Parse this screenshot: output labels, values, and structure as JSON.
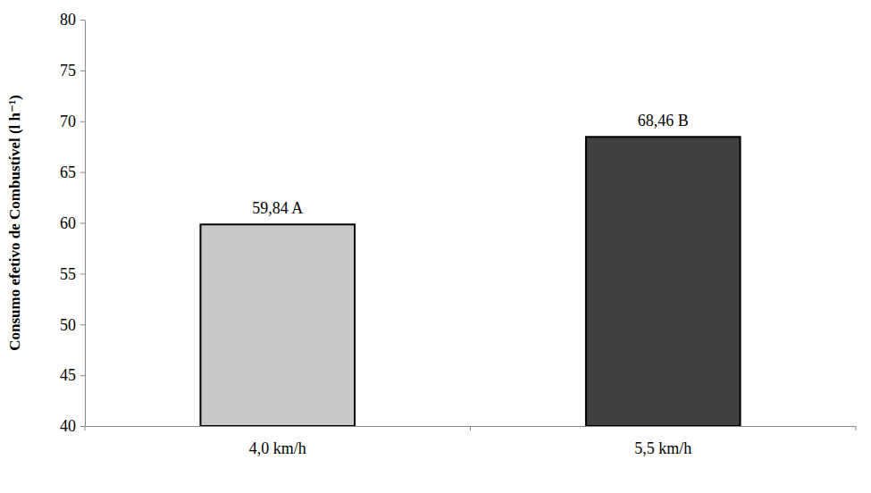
{
  "chart_data": {
    "type": "bar",
    "y_label": "Consumo efetivo de Combustível (l h⁻¹)",
    "categories": [
      "4,0 km/h",
      "5,5 km/h"
    ],
    "values": [
      59.84,
      68.46
    ],
    "value_labels": [
      "59,84 A",
      "68,46 B"
    ],
    "data_labels": true,
    "colors": [
      "#c8c8c8",
      "#404040"
    ],
    "ylim": [
      40,
      80
    ],
    "yticks": [
      40,
      45,
      50,
      55,
      60,
      65,
      70,
      75,
      80
    ],
    "grid": false
  }
}
